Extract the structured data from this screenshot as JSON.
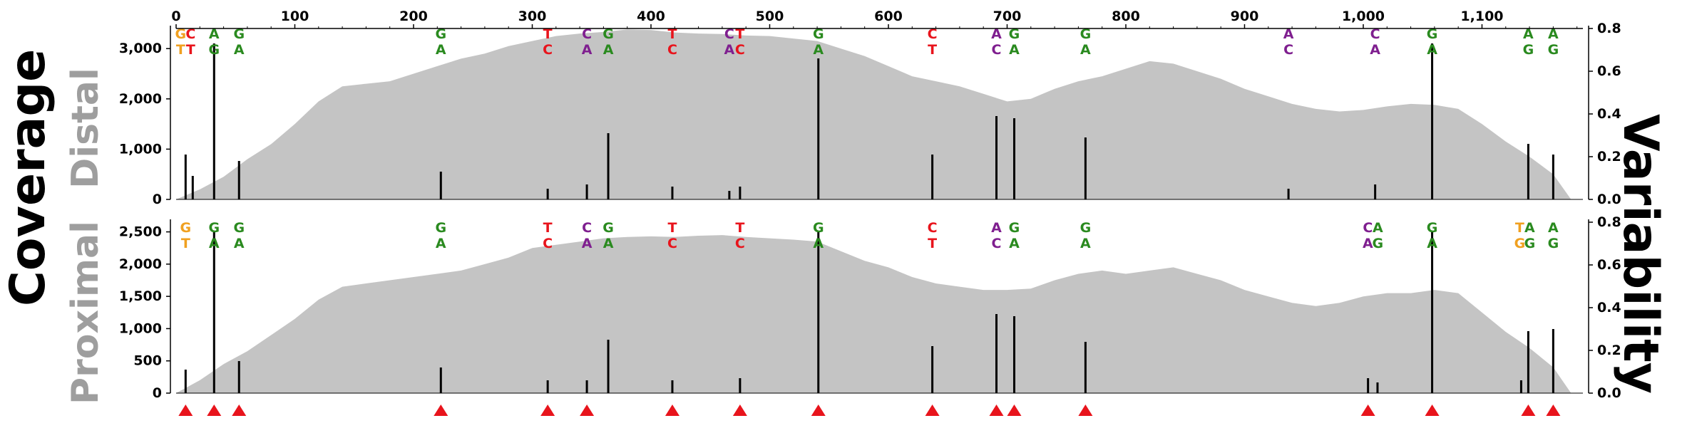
{
  "labels": {
    "coverage": "Coverage",
    "variability": "Variability",
    "distal": "Distal",
    "proximal": "Proximal"
  },
  "colors": {
    "area": "#c4c4c4",
    "bar": "#000000",
    "marker": "#e8141c",
    "A": "#2a8a1f",
    "C": "#7f1f8f",
    "G": "#2a8a1f",
    "T": "#e8141c",
    "mixed_orange": "#f0a020"
  },
  "chart_data": {
    "type": "area",
    "x_ticks": [
      0,
      100,
      200,
      300,
      400,
      500,
      600,
      700,
      800,
      900,
      1000,
      1100
    ],
    "x_tick_labels": [
      "0",
      "100",
      "200",
      "300",
      "400",
      "500",
      "600",
      "700",
      "800",
      "900",
      "1,000",
      "1,100"
    ],
    "xlim": [
      0,
      1185
    ],
    "marker_positions": [
      8,
      32,
      53,
      223,
      313,
      346,
      418,
      475,
      541,
      637,
      691,
      706,
      766,
      1004,
      1058,
      1139,
      1160
    ],
    "panels": [
      {
        "name": "Distal",
        "ylim_coverage": [
          0,
          3400
        ],
        "coverage_ticks": [
          0,
          1000,
          2000,
          3000
        ],
        "coverage_tick_labels": [
          "0",
          "1,000",
          "2,000",
          "3,000"
        ],
        "ylim_variability": [
          0,
          0.8
        ],
        "variability_ticks": [
          0.0,
          0.2,
          0.4,
          0.6,
          0.8
        ],
        "variability_tick_labels": [
          "0.0",
          "0.2",
          "0.4",
          "0.6",
          "0.8"
        ],
        "coverage": {
          "x": [
            0,
            20,
            40,
            60,
            80,
            100,
            120,
            140,
            160,
            180,
            200,
            220,
            240,
            260,
            280,
            300,
            320,
            340,
            360,
            380,
            400,
            420,
            440,
            460,
            480,
            500,
            520,
            540,
            560,
            580,
            600,
            620,
            640,
            660,
            680,
            700,
            720,
            740,
            760,
            780,
            800,
            820,
            840,
            860,
            880,
            900,
            920,
            940,
            960,
            980,
            1000,
            1020,
            1040,
            1060,
            1080,
            1100,
            1120,
            1140,
            1160,
            1175
          ],
          "y": [
            0,
            200,
            450,
            800,
            1100,
            1500,
            1950,
            2250,
            2300,
            2350,
            2500,
            2650,
            2800,
            2900,
            3050,
            3150,
            3250,
            3300,
            3330,
            3380,
            3370,
            3320,
            3300,
            3290,
            3260,
            3250,
            3200,
            3150,
            3000,
            2850,
            2650,
            2450,
            2350,
            2250,
            2100,
            1950,
            2000,
            2200,
            2350,
            2450,
            2600,
            2750,
            2700,
            2550,
            2400,
            2200,
            2050,
            1900,
            1800,
            1750,
            1780,
            1850,
            1900,
            1880,
            1800,
            1500,
            1150,
            850,
            500,
            0
          ]
        },
        "variability": [
          {
            "pos": 8,
            "value": 0.21
          },
          {
            "pos": 14,
            "value": 0.11
          },
          {
            "pos": 32,
            "value": 0.73
          },
          {
            "pos": 53,
            "value": 0.18
          },
          {
            "pos": 223,
            "value": 0.13
          },
          {
            "pos": 313,
            "value": 0.05
          },
          {
            "pos": 346,
            "value": 0.07
          },
          {
            "pos": 364,
            "value": 0.31
          },
          {
            "pos": 418,
            "value": 0.06
          },
          {
            "pos": 466,
            "value": 0.04
          },
          {
            "pos": 475,
            "value": 0.06
          },
          {
            "pos": 541,
            "value": 0.66
          },
          {
            "pos": 637,
            "value": 0.21
          },
          {
            "pos": 691,
            "value": 0.39
          },
          {
            "pos": 706,
            "value": 0.38
          },
          {
            "pos": 766,
            "value": 0.29
          },
          {
            "pos": 937,
            "value": 0.05
          },
          {
            "pos": 1010,
            "value": 0.07
          },
          {
            "pos": 1058,
            "value": 0.73
          },
          {
            "pos": 1139,
            "value": 0.26
          },
          {
            "pos": 1160,
            "value": 0.21
          }
        ],
        "alleles": [
          {
            "pos": 8,
            "top": "GC",
            "bottom": "TT",
            "top_colors": [
              "#f0a020",
              "#e8141c"
            ],
            "bottom_colors": [
              "#f0a020",
              "#e8141c"
            ]
          },
          {
            "pos": 32,
            "top": "A",
            "bottom": "G",
            "top_colors": [
              "#2a8a1f"
            ],
            "bottom_colors": [
              "#2a8a1f"
            ]
          },
          {
            "pos": 53,
            "top": "G",
            "bottom": "A",
            "top_colors": [
              "#2a8a1f"
            ],
            "bottom_colors": [
              "#2a8a1f"
            ]
          },
          {
            "pos": 223,
            "top": "G",
            "bottom": "A",
            "top_colors": [
              "#2a8a1f"
            ],
            "bottom_colors": [
              "#2a8a1f"
            ]
          },
          {
            "pos": 313,
            "top": "T",
            "bottom": "C",
            "top_colors": [
              "#e8141c"
            ],
            "bottom_colors": [
              "#e8141c"
            ]
          },
          {
            "pos": 346,
            "top": "C",
            "bottom": "A",
            "top_colors": [
              "#7f1f8f"
            ],
            "bottom_colors": [
              "#7f1f8f"
            ]
          },
          {
            "pos": 364,
            "top": "G",
            "bottom": "A",
            "top_colors": [
              "#2a8a1f"
            ],
            "bottom_colors": [
              "#2a8a1f"
            ]
          },
          {
            "pos": 418,
            "top": "T",
            "bottom": "C",
            "top_colors": [
              "#e8141c"
            ],
            "bottom_colors": [
              "#e8141c"
            ]
          },
          {
            "pos": 466,
            "top": "C",
            "bottom": "A",
            "top_colors": [
              "#7f1f8f"
            ],
            "bottom_colors": [
              "#7f1f8f"
            ]
          },
          {
            "pos": 475,
            "top": "T",
            "bottom": "C",
            "top_colors": [
              "#e8141c"
            ],
            "bottom_colors": [
              "#e8141c"
            ]
          },
          {
            "pos": 541,
            "top": "G",
            "bottom": "A",
            "top_colors": [
              "#2a8a1f"
            ],
            "bottom_colors": [
              "#2a8a1f"
            ]
          },
          {
            "pos": 637,
            "top": "C",
            "bottom": "T",
            "top_colors": [
              "#e8141c"
            ],
            "bottom_colors": [
              "#e8141c"
            ]
          },
          {
            "pos": 691,
            "top": "A",
            "bottom": "C",
            "top_colors": [
              "#7f1f8f"
            ],
            "bottom_colors": [
              "#7f1f8f"
            ]
          },
          {
            "pos": 706,
            "top": "G",
            "bottom": "A",
            "top_colors": [
              "#2a8a1f"
            ],
            "bottom_colors": [
              "#2a8a1f"
            ]
          },
          {
            "pos": 766,
            "top": "G",
            "bottom": "A",
            "top_colors": [
              "#2a8a1f"
            ],
            "bottom_colors": [
              "#2a8a1f"
            ]
          },
          {
            "pos": 937,
            "top": "A",
            "bottom": "C",
            "top_colors": [
              "#7f1f8f"
            ],
            "bottom_colors": [
              "#7f1f8f"
            ]
          },
          {
            "pos": 1010,
            "top": "C",
            "bottom": "A",
            "top_colors": [
              "#7f1f8f"
            ],
            "bottom_colors": [
              "#7f1f8f"
            ]
          },
          {
            "pos": 1058,
            "top": "G",
            "bottom": "A",
            "top_colors": [
              "#2a8a1f"
            ],
            "bottom_colors": [
              "#2a8a1f"
            ]
          },
          {
            "pos": 1139,
            "top": "A",
            "bottom": "G",
            "top_colors": [
              "#2a8a1f"
            ],
            "bottom_colors": [
              "#2a8a1f"
            ]
          },
          {
            "pos": 1160,
            "top": "A",
            "bottom": "G",
            "top_colors": [
              "#2a8a1f"
            ],
            "bottom_colors": [
              "#2a8a1f"
            ]
          }
        ]
      },
      {
        "name": "Proximal",
        "ylim_coverage": [
          0,
          2650
        ],
        "coverage_ticks": [
          0,
          500,
          1000,
          1500,
          2000,
          2500
        ],
        "coverage_tick_labels": [
          "0",
          "500",
          "1,000",
          "1,500",
          "2,000",
          "2,500"
        ],
        "ylim_variability": [
          0,
          0.8
        ],
        "variability_ticks": [
          0.0,
          0.2,
          0.4,
          0.6,
          0.8
        ],
        "variability_tick_labels": [
          "0.0",
          "0.2",
          "0.4",
          "0.6",
          "0.8"
        ],
        "coverage": {
          "x": [
            0,
            20,
            40,
            60,
            80,
            100,
            120,
            140,
            160,
            180,
            200,
            220,
            240,
            260,
            280,
            300,
            320,
            340,
            360,
            380,
            400,
            420,
            440,
            460,
            480,
            500,
            520,
            540,
            560,
            580,
            600,
            620,
            640,
            660,
            680,
            700,
            720,
            740,
            760,
            780,
            800,
            820,
            840,
            860,
            880,
            900,
            920,
            940,
            960,
            980,
            1000,
            1020,
            1040,
            1060,
            1080,
            1100,
            1120,
            1140,
            1160,
            1175
          ],
          "y": [
            0,
            200,
            450,
            650,
            900,
            1150,
            1450,
            1650,
            1700,
            1750,
            1800,
            1850,
            1900,
            2000,
            2100,
            2250,
            2300,
            2350,
            2400,
            2420,
            2430,
            2420,
            2440,
            2450,
            2420,
            2400,
            2380,
            2350,
            2200,
            2050,
            1950,
            1800,
            1700,
            1650,
            1600,
            1600,
            1620,
            1750,
            1850,
            1900,
            1850,
            1900,
            1950,
            1850,
            1750,
            1600,
            1500,
            1400,
            1350,
            1400,
            1500,
            1550,
            1550,
            1600,
            1550,
            1250,
            950,
            700,
            400,
            0
          ]
        },
        "variability": [
          {
            "pos": 8,
            "value": 0.11
          },
          {
            "pos": 32,
            "value": 0.76
          },
          {
            "pos": 53,
            "value": 0.15
          },
          {
            "pos": 223,
            "value": 0.12
          },
          {
            "pos": 313,
            "value": 0.06
          },
          {
            "pos": 346,
            "value": 0.06
          },
          {
            "pos": 364,
            "value": 0.25
          },
          {
            "pos": 418,
            "value": 0.06
          },
          {
            "pos": 475,
            "value": 0.07
          },
          {
            "pos": 541,
            "value": 0.76
          },
          {
            "pos": 637,
            "value": 0.22
          },
          {
            "pos": 691,
            "value": 0.37
          },
          {
            "pos": 706,
            "value": 0.36
          },
          {
            "pos": 766,
            "value": 0.24
          },
          {
            "pos": 1004,
            "value": 0.07
          },
          {
            "pos": 1012,
            "value": 0.05
          },
          {
            "pos": 1058,
            "value": 0.76
          },
          {
            "pos": 1133,
            "value": 0.06
          },
          {
            "pos": 1139,
            "value": 0.29
          },
          {
            "pos": 1160,
            "value": 0.3
          }
        ],
        "alleles": [
          {
            "pos": 8,
            "top": "G",
            "bottom": "T",
            "top_colors": [
              "#f0a020"
            ],
            "bottom_colors": [
              "#f0a020"
            ]
          },
          {
            "pos": 32,
            "top": "G",
            "bottom": "A",
            "top_colors": [
              "#2a8a1f"
            ],
            "bottom_colors": [
              "#2a8a1f"
            ]
          },
          {
            "pos": 53,
            "top": "G",
            "bottom": "A",
            "top_colors": [
              "#2a8a1f"
            ],
            "bottom_colors": [
              "#2a8a1f"
            ]
          },
          {
            "pos": 223,
            "top": "G",
            "bottom": "A",
            "top_colors": [
              "#2a8a1f"
            ],
            "bottom_colors": [
              "#2a8a1f"
            ]
          },
          {
            "pos": 313,
            "top": "T",
            "bottom": "C",
            "top_colors": [
              "#e8141c"
            ],
            "bottom_colors": [
              "#e8141c"
            ]
          },
          {
            "pos": 346,
            "top": "C",
            "bottom": "A",
            "top_colors": [
              "#7f1f8f"
            ],
            "bottom_colors": [
              "#7f1f8f"
            ]
          },
          {
            "pos": 364,
            "top": "G",
            "bottom": "A",
            "top_colors": [
              "#2a8a1f"
            ],
            "bottom_colors": [
              "#2a8a1f"
            ]
          },
          {
            "pos": 418,
            "top": "T",
            "bottom": "C",
            "top_colors": [
              "#e8141c"
            ],
            "bottom_colors": [
              "#e8141c"
            ]
          },
          {
            "pos": 475,
            "top": "T",
            "bottom": "C",
            "top_colors": [
              "#e8141c"
            ],
            "bottom_colors": [
              "#e8141c"
            ]
          },
          {
            "pos": 541,
            "top": "G",
            "bottom": "A",
            "top_colors": [
              "#2a8a1f"
            ],
            "bottom_colors": [
              "#2a8a1f"
            ]
          },
          {
            "pos": 637,
            "top": "C",
            "bottom": "T",
            "top_colors": [
              "#e8141c"
            ],
            "bottom_colors": [
              "#e8141c"
            ]
          },
          {
            "pos": 691,
            "top": "A",
            "bottom": "C",
            "top_colors": [
              "#7f1f8f"
            ],
            "bottom_colors": [
              "#7f1f8f"
            ]
          },
          {
            "pos": 706,
            "top": "G",
            "bottom": "A",
            "top_colors": [
              "#2a8a1f"
            ],
            "bottom_colors": [
              "#2a8a1f"
            ]
          },
          {
            "pos": 766,
            "top": "G",
            "bottom": "A",
            "top_colors": [
              "#2a8a1f"
            ],
            "bottom_colors": [
              "#2a8a1f"
            ]
          },
          {
            "pos": 1008,
            "top": "CA",
            "bottom": "AG",
            "top_colors": [
              "#7f1f8f",
              "#2a8a1f"
            ],
            "bottom_colors": [
              "#7f1f8f",
              "#2a8a1f"
            ]
          },
          {
            "pos": 1058,
            "top": "G",
            "bottom": "A",
            "top_colors": [
              "#2a8a1f"
            ],
            "bottom_colors": [
              "#2a8a1f"
            ]
          },
          {
            "pos": 1136,
            "top": "TA",
            "bottom": "GG",
            "top_colors": [
              "#f0a020",
              "#2a8a1f"
            ],
            "bottom_colors": [
              "#f0a020",
              "#2a8a1f"
            ]
          },
          {
            "pos": 1160,
            "top": "A",
            "bottom": "G",
            "top_colors": [
              "#2a8a1f"
            ],
            "bottom_colors": [
              "#2a8a1f"
            ]
          }
        ]
      }
    ]
  }
}
